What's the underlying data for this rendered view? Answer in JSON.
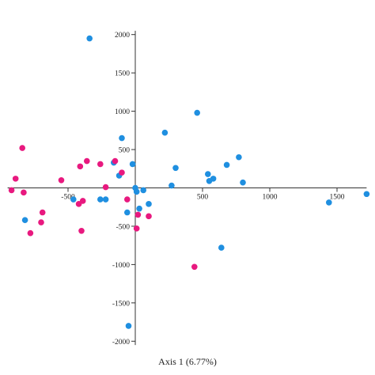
{
  "chart_data": {
    "type": "scatter",
    "title": "",
    "xlabel": "Axis 1 (6.77%)",
    "ylabel": "",
    "xlim": [
      -920,
      1720
    ],
    "ylim": [
      -2050,
      2050
    ],
    "grid": false,
    "legend": "none",
    "x_ticks": [
      {
        "value": -500,
        "label": "-500"
      },
      {
        "value": 500,
        "label": "500"
      },
      {
        "value": 1000,
        "label": "1000"
      },
      {
        "value": 1500,
        "label": "1500"
      }
    ],
    "y_ticks": [
      {
        "value": 2000,
        "label": "2000"
      },
      {
        "value": 1500,
        "label": "1500"
      },
      {
        "value": 1000,
        "label": "1000"
      },
      {
        "value": 500,
        "label": "500"
      },
      {
        "value": -500,
        "label": "-500"
      },
      {
        "value": -1000,
        "label": "-1000"
      },
      {
        "value": -1500,
        "label": "-1500"
      },
      {
        "value": -2000,
        "label": "-2000"
      }
    ],
    "series": [
      {
        "color": "#1f8fe0",
        "points": [
          [
            -340,
            1950
          ],
          [
            -100,
            650
          ],
          [
            -160,
            330
          ],
          [
            -120,
            160
          ],
          [
            -20,
            310
          ],
          [
            0,
            0
          ],
          [
            10,
            -50
          ],
          [
            60,
            -30
          ],
          [
            30,
            -270
          ],
          [
            -60,
            -320
          ],
          [
            100,
            -210
          ],
          [
            -220,
            -150
          ],
          [
            -260,
            -150
          ],
          [
            -460,
            -150
          ],
          [
            -820,
            -420
          ],
          [
            220,
            720
          ],
          [
            460,
            980
          ],
          [
            300,
            260
          ],
          [
            270,
            30
          ],
          [
            540,
            180
          ],
          [
            550,
            90
          ],
          [
            580,
            120
          ],
          [
            680,
            300
          ],
          [
            770,
            400
          ],
          [
            800,
            70
          ],
          [
            1440,
            -190
          ],
          [
            1720,
            -80
          ],
          [
            640,
            -780
          ],
          [
            -50,
            -1800
          ]
        ]
      },
      {
        "color": "#e8197f",
        "points": [
          [
            -840,
            520
          ],
          [
            -890,
            120
          ],
          [
            -920,
            -30
          ],
          [
            -830,
            -60
          ],
          [
            -550,
            100
          ],
          [
            -690,
            -320
          ],
          [
            -700,
            -450
          ],
          [
            -780,
            -590
          ],
          [
            -410,
            280
          ],
          [
            -390,
            -170
          ],
          [
            -420,
            -210
          ],
          [
            -400,
            -560
          ],
          [
            -360,
            350
          ],
          [
            -260,
            310
          ],
          [
            -220,
            10
          ],
          [
            -150,
            350
          ],
          [
            -100,
            200
          ],
          [
            -60,
            -150
          ],
          [
            20,
            -350
          ],
          [
            10,
            -530
          ],
          [
            100,
            -370
          ],
          [
            440,
            -1030
          ]
        ]
      }
    ]
  }
}
